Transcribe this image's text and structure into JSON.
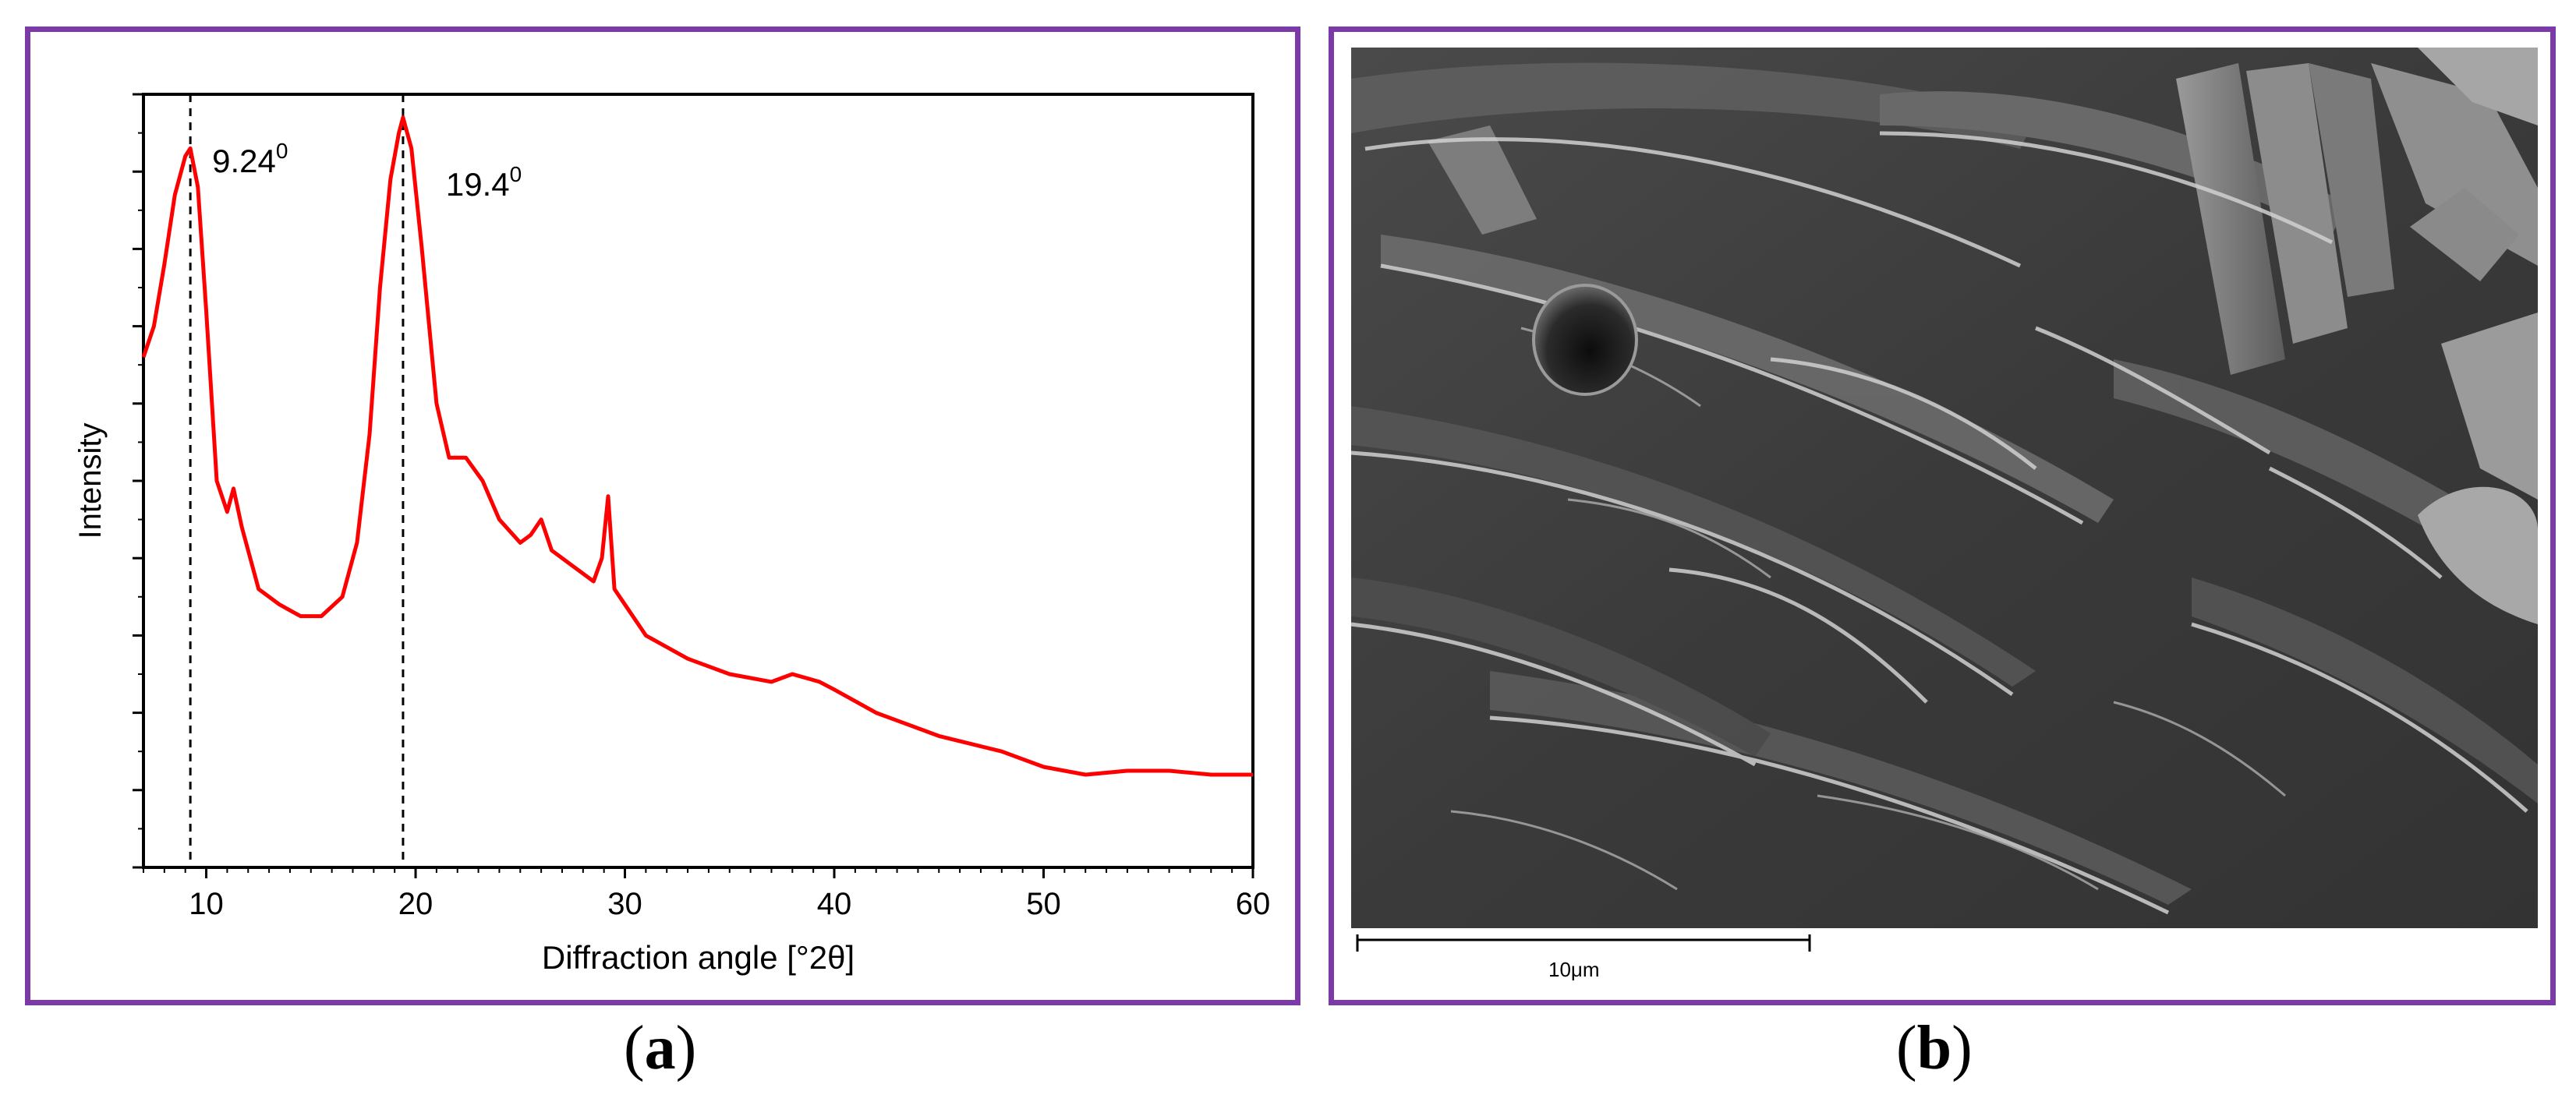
{
  "panels": {
    "a": {
      "label_open": "(",
      "label_letter": "a",
      "label_close": ")"
    },
    "b": {
      "label_open": "(",
      "label_letter": "b",
      "label_close": ")"
    }
  },
  "chart_data": {
    "type": "line",
    "xlabel": "Diffraction angle [°2θ]",
    "ylabel": "Intensity",
    "xlim": [
      7,
      60
    ],
    "ylim": [
      0,
      100
    ],
    "xticks": [
      10,
      20,
      30,
      40,
      50,
      60
    ],
    "y_tick_labels_shown": false,
    "line_color": "#ff0000",
    "series": [
      {
        "x": [
          7,
          7.5,
          8,
          8.5,
          9,
          9.24,
          9.6,
          10,
          10.5,
          11,
          11.3,
          11.7,
          12.5,
          13.5,
          14.5,
          15.5,
          16.5,
          17.2,
          17.8,
          18.3,
          18.8,
          19.2,
          19.4,
          19.8,
          20.3,
          21,
          21.6,
          22.4,
          23.2,
          24,
          25,
          25.5,
          26,
          26.5,
          27.5,
          28.5,
          28.9,
          29.2,
          29.5,
          30,
          31,
          33,
          35,
          37,
          38,
          39.3,
          40,
          42,
          45,
          48,
          50,
          52,
          54,
          56,
          58,
          60
        ],
        "y": [
          66,
          70,
          78,
          87,
          92,
          93,
          88,
          72,
          50,
          46,
          49,
          44,
          36,
          34,
          32.5,
          32.5,
          35,
          42,
          56,
          75,
          89,
          95,
          97,
          93,
          80,
          60,
          53,
          53,
          50,
          45,
          42,
          43,
          45,
          41,
          39,
          37,
          40,
          48,
          36,
          34,
          30,
          27,
          25,
          24,
          25,
          24,
          23,
          20,
          17,
          15,
          13,
          12,
          12.5,
          12.5,
          12,
          12
        ]
      }
    ],
    "annotations": [
      {
        "x": 9.24,
        "text_main": "9.24",
        "text_sup": "0",
        "line": "dashed"
      },
      {
        "x": 19.4,
        "text_main": "19.4",
        "text_sup": "0",
        "line": "dashed"
      }
    ]
  },
  "sem": {
    "scale_label": "10μm"
  }
}
